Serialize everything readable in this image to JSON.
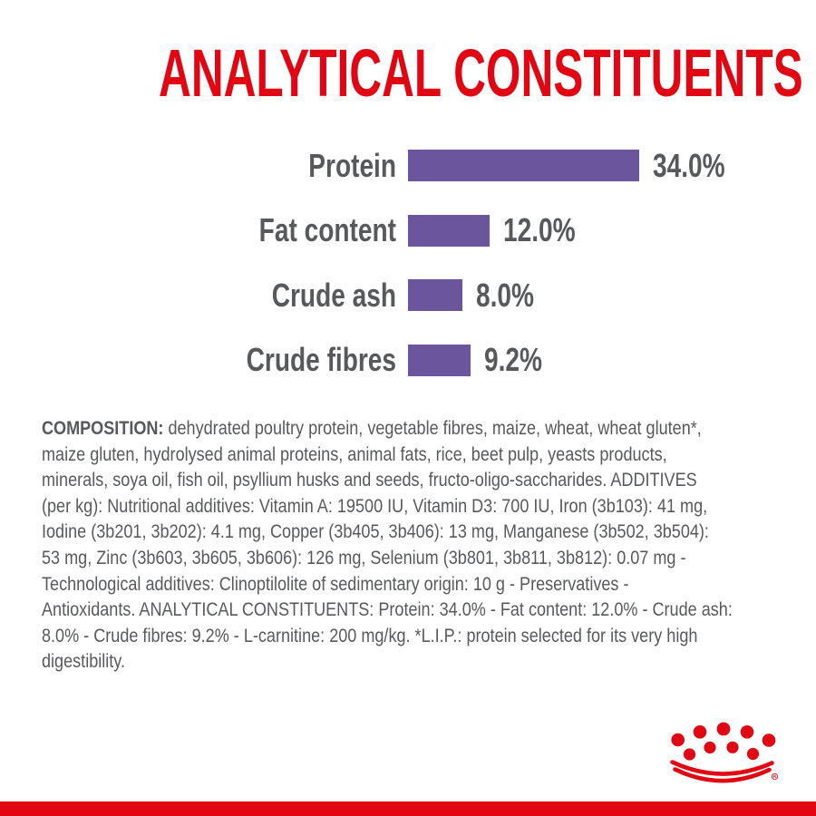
{
  "title": {
    "text": "ANALYTICAL CONSTITUENTS",
    "color": "#E20613"
  },
  "chart_data": {
    "type": "bar",
    "orientation": "horizontal",
    "title": "ANALYTICAL CONSTITUENTS",
    "categories": [
      "Protein",
      "Fat content",
      "Crude ash",
      "Crude fibres"
    ],
    "values": [
      34.0,
      12.0,
      8.0,
      9.2
    ],
    "value_labels": [
      "34.0%",
      "12.0%",
      "8.0%",
      "9.2%"
    ],
    "unit": "%",
    "xlim": [
      0,
      34
    ],
    "grid": false,
    "legend": false,
    "bar_color": "#6B559D",
    "label_color": "#58595B"
  },
  "composition": {
    "label": "COMPOSITION:",
    "text": " dehydrated poultry protein, vegetable fibres, maize, wheat, wheat gluten*,\nmaize gluten, hydrolysed animal proteins, animal fats, rice, beet pulp, yeasts products,\nminerals, soya oil, fish oil, psyllium husks and seeds, fructo-oligo-saccharides. ADDITIVES\n(per kg): Nutritional additives: Vitamin A: 19500 IU, Vitamin D3: 700 IU, Iron (3b103): 41 mg,\nIodine (3b201, 3b202): 4.1 mg, Copper (3b405, 3b406): 13 mg, Manganese (3b502, 3b504):\n53 mg, Zinc (3b603, 3b605, 3b606): 126 mg, Selenium (3b801, 3b811, 3b812): 0.07 mg -\nTechnological additives: Clinoptilolite of sedimentary origin: 10 g - Preservatives -\nAntioxidants. ANALYTICAL CONSTITUENTS: Protein: 34.0% - Fat content: 12.0% - Crude ash:\n8.0% - Crude fibres: 9.2% - L-carnitine: 200 mg/kg. *L.I.P.: protein selected for its very high\ndigestibility."
  },
  "logo": {
    "name": "royal-canin-crown",
    "color": "#E20613",
    "registered_mark": "R"
  },
  "footer": {
    "bar_color": "#E20613"
  },
  "colors": {
    "accent_red": "#E20613",
    "bar_purple": "#6B559D",
    "text_gray": "#58595B",
    "background": "#FFFFFF"
  }
}
